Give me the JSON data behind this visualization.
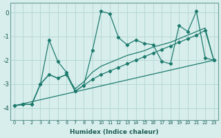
{
  "xlabel": "Humidex (Indice chaleur)",
  "xlim": [
    -0.5,
    23.5
  ],
  "ylim": [
    -4.5,
    0.4
  ],
  "background_color": "#d7eeec",
  "grid_color": "#b8d8d5",
  "line_color": "#1e7b6e",
  "xticks": [
    0,
    1,
    2,
    3,
    4,
    5,
    6,
    7,
    8,
    9,
    10,
    11,
    12,
    13,
    14,
    15,
    16,
    17,
    18,
    19,
    20,
    21,
    22,
    23
  ],
  "yticks": [
    0,
    -1,
    -2,
    -3,
    -4
  ],
  "line1_y": [
    -3.9,
    -3.85,
    -3.85,
    -3.0,
    -1.15,
    -2.05,
    -2.5,
    -3.3,
    -3.05,
    -1.6,
    0.05,
    -0.05,
    -1.05,
    -1.35,
    -1.15,
    -1.3,
    -1.35,
    -2.05,
    -2.15,
    -0.55,
    -0.8,
    0.05,
    -1.9,
    -2.0
  ],
  "line2_y": [
    -3.9,
    -3.85,
    -3.85,
    -3.0,
    -2.6,
    -2.75,
    -2.6,
    -3.3,
    -3.05,
    -2.8,
    -2.6,
    -2.45,
    -2.3,
    -2.15,
    -2.0,
    -1.85,
    -1.7,
    -1.55,
    -1.4,
    -1.25,
    -1.1,
    -0.95,
    -0.75,
    -2.0
  ],
  "line3_y": [
    -3.9,
    -3.85,
    -3.85,
    -3.0,
    -2.6,
    -2.75,
    -2.6,
    -3.2,
    -2.9,
    -2.5,
    -2.25,
    -2.1,
    -1.95,
    -1.8,
    -1.7,
    -1.6,
    -1.45,
    -1.35,
    -1.25,
    -1.1,
    -0.95,
    -0.8,
    -0.65,
    -2.0
  ],
  "line4_y": [
    -3.9,
    -2.0
  ],
  "line4_x": [
    0,
    23
  ]
}
